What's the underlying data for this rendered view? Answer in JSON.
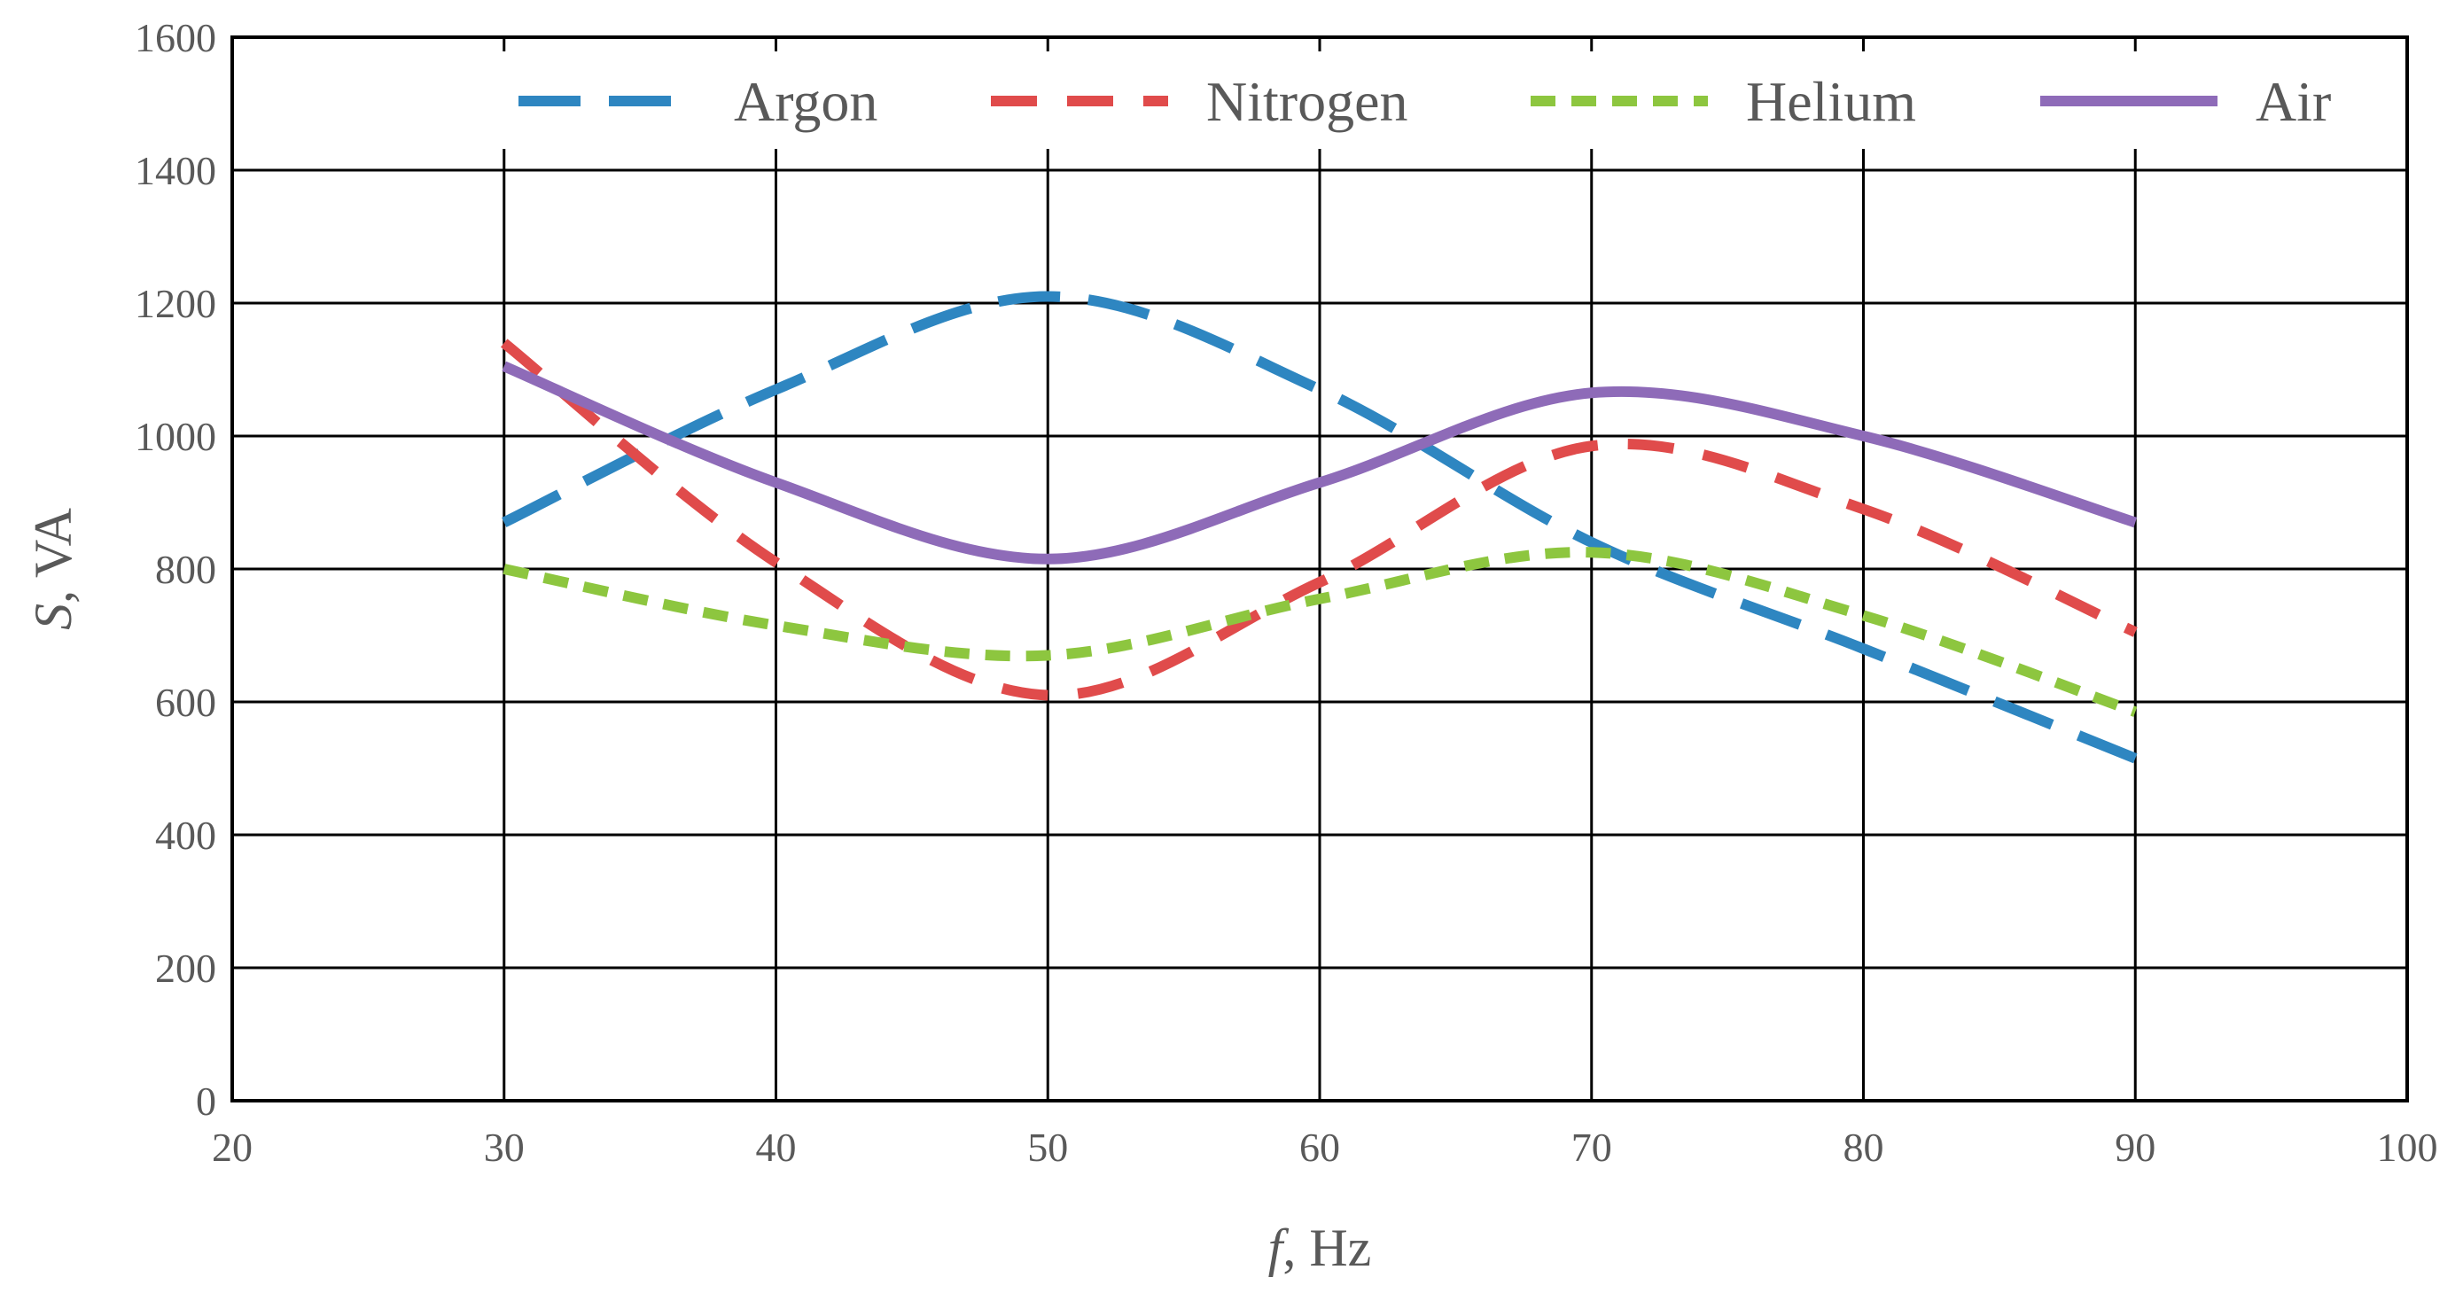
{
  "chart_data": {
    "type": "line",
    "xlabel_var": "f",
    "xlabel_unit": ", Hz",
    "ylabel_var": "S",
    "ylabel_unit": ", VA",
    "xlim": [
      20,
      100
    ],
    "ylim": [
      0,
      1600
    ],
    "xticks": [
      20,
      30,
      40,
      50,
      60,
      70,
      80,
      90,
      100
    ],
    "yticks": [
      0,
      200,
      400,
      600,
      800,
      1000,
      1200,
      1400,
      1600
    ],
    "grid": true,
    "legend_position": "top",
    "x": [
      30,
      40,
      50,
      60,
      70,
      80,
      90
    ],
    "series": [
      {
        "name": "Argon",
        "color": "#2E86C1",
        "dash": "long-dash",
        "values": [
          870,
          1070,
          1210,
          1070,
          840,
          680,
          515
        ]
      },
      {
        "name": "Nitrogen",
        "color": "#E04B4B",
        "dash": "dash",
        "values": [
          1140,
          810,
          610,
          780,
          985,
          890,
          705
        ]
      },
      {
        "name": "Helium",
        "color": "#8DC63F",
        "dash": "short-dash",
        "values": [
          800,
          715,
          670,
          755,
          825,
          730,
          585
        ]
      },
      {
        "name": "Air",
        "color": "#8E6BB8",
        "dash": "solid",
        "values": [
          1105,
          930,
          815,
          930,
          1065,
          1000,
          870
        ]
      }
    ]
  }
}
